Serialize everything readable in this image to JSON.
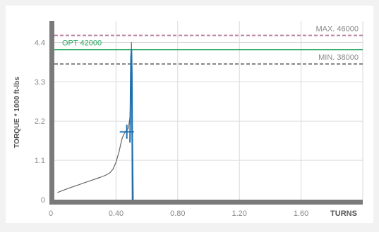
{
  "chart_data": {
    "type": "line",
    "xlabel": "TURNS",
    "ylabel": "TORQUE * 1000 ft-lbs",
    "xlim": [
      0,
      2.0
    ],
    "ylim": [
      0,
      5.0
    ],
    "x_ticks": [
      {
        "value": 0,
        "label": "0"
      },
      {
        "value": 0.4,
        "label": "0.40"
      },
      {
        "value": 0.8,
        "label": "0.80"
      },
      {
        "value": 1.2,
        "label": "1.20"
      },
      {
        "value": 1.6,
        "label": "1.60"
      }
    ],
    "y_ticks": [
      {
        "value": 0,
        "label": "0"
      },
      {
        "value": 1.1,
        "label": "1.1"
      },
      {
        "value": 2.2,
        "label": "2.2"
      },
      {
        "value": 3.3,
        "label": "3.3"
      },
      {
        "value": 4.4,
        "label": "4.4"
      }
    ],
    "grid": true,
    "thresholds": [
      {
        "key": "max",
        "label": "MAX. 46000",
        "value": 4.6,
        "style": "dashed",
        "color": "#c08aa8",
        "label_color": "#888888",
        "label_side": "right"
      },
      {
        "key": "opt",
        "label": "OPT 42000",
        "value": 4.2,
        "style": "solid",
        "color": "#2aa860",
        "label_color": "#2aa860",
        "label_side": "left"
      },
      {
        "key": "min",
        "label": "MIN. 38000",
        "value": 3.8,
        "style": "dashed",
        "color": "#888888",
        "label_color": "#888888",
        "label_side": "right"
      }
    ],
    "series": [
      {
        "color": "#666666",
        "x": [
          0.02,
          0.05,
          0.08,
          0.12,
          0.16,
          0.2,
          0.24,
          0.28,
          0.3,
          0.33,
          0.36,
          0.38,
          0.4,
          0.42,
          0.43,
          0.44,
          0.45,
          0.46,
          0.47,
          0.48,
          0.49,
          0.495,
          0.5,
          0.505
        ],
        "y": [
          0.2,
          0.25,
          0.3,
          0.36,
          0.42,
          0.48,
          0.54,
          0.6,
          0.63,
          0.68,
          0.75,
          0.85,
          1.05,
          1.35,
          1.55,
          1.72,
          1.82,
          1.9,
          1.95,
          2.0,
          2.3,
          2.8,
          4.4,
          0.0
        ]
      },
      {
        "color": "#1c6fb0",
        "x": [
          0.49,
          0.493,
          0.495,
          0.497,
          0.5,
          0.503,
          0.505,
          0.508,
          0.51
        ],
        "y": [
          1.6,
          2.4,
          3.4,
          4.0,
          4.2,
          3.5,
          2.0,
          0.7,
          0.0
        ]
      }
    ],
    "marker": {
      "shape": "cross",
      "x": 0.47,
      "y": 1.9,
      "color": "#1c6fb0"
    }
  }
}
